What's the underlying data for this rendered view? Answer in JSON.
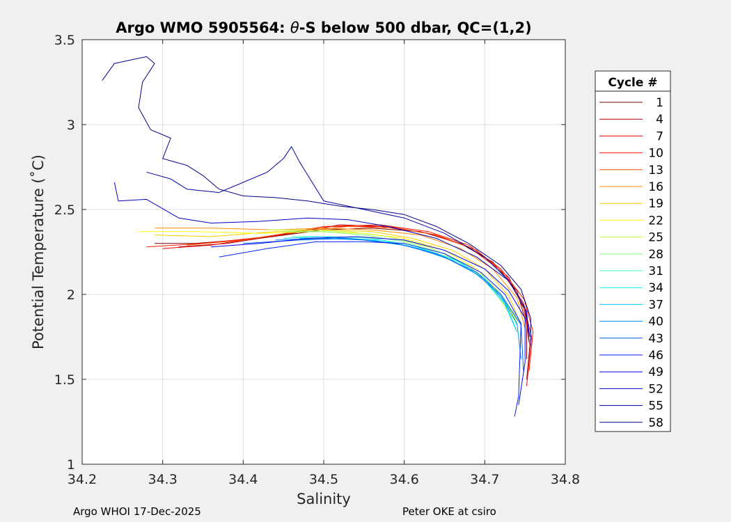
{
  "chart_data": {
    "type": "line",
    "title": {
      "prefix": "Argo WMO 5905564: ",
      "symbol": "θ",
      "suffix": "-S below 500 dbar,  QC=(1,2)"
    },
    "xlabel": "Salinity",
    "ylabel": "Potential Temperature (˚C)",
    "xlim": [
      34.2,
      34.8
    ],
    "ylim": [
      1,
      3.5
    ],
    "xticks": [
      34.2,
      34.3,
      34.4,
      34.5,
      34.6,
      34.7,
      34.8
    ],
    "xtick_labels": [
      "34.2",
      "34.3",
      "34.4",
      "34.5",
      "34.6",
      "34.7",
      "34.8"
    ],
    "yticks": [
      1,
      1.5,
      2,
      2.5,
      3,
      3.5
    ],
    "ytick_labels": [
      "1",
      "1.5",
      "2",
      "2.5",
      "3",
      "3.5"
    ],
    "grid": true,
    "colormap": "jet",
    "series_note": "one theta-S profile per cycle (cycles 1-58), colored by cycle number",
    "legend": {
      "title": "Cycle #",
      "placement": "outside-right",
      "entries": [
        {
          "label": "1",
          "color": "#7f0000"
        },
        {
          "label": "4",
          "color": "#ad0000"
        },
        {
          "label": "7",
          "color": "#dd0000"
        },
        {
          "label": "10",
          "color": "#ff1a00"
        },
        {
          "label": "13",
          "color": "#ff4a00"
        },
        {
          "label": "16",
          "color": "#ff8a00"
        },
        {
          "label": "19",
          "color": "#ffcc00"
        },
        {
          "label": "22",
          "color": "#fdff00"
        },
        {
          "label": "25",
          "color": "#c2ff3c"
        },
        {
          "label": "28",
          "color": "#7dff7d"
        },
        {
          "label": "31",
          "color": "#3cffc2"
        },
        {
          "label": "34",
          "color": "#00f2f2"
        },
        {
          "label": "37",
          "color": "#00c8ff"
        },
        {
          "label": "40",
          "color": "#0090ff"
        },
        {
          "label": "43",
          "color": "#0058ff"
        },
        {
          "label": "46",
          "color": "#0020ff"
        },
        {
          "label": "49",
          "color": "#0000f0"
        },
        {
          "label": "52",
          "color": "#0000c8"
        },
        {
          "label": "55",
          "color": "#0000a6"
        },
        {
          "label": "58",
          "color": "#00008b"
        }
      ]
    },
    "profiles": [
      {
        "cycle": 1,
        "color": "#7f0000",
        "pts": [
          [
            34.29,
            2.3
          ],
          [
            34.34,
            2.3
          ],
          [
            34.42,
            2.33
          ],
          [
            34.5,
            2.38
          ],
          [
            34.56,
            2.39
          ],
          [
            34.62,
            2.37
          ],
          [
            34.67,
            2.3
          ],
          [
            34.71,
            2.19
          ],
          [
            34.74,
            2.02
          ],
          [
            34.752,
            1.82
          ],
          [
            34.752,
            1.62
          ]
        ]
      },
      {
        "cycle": 4,
        "color": "#ad0000",
        "pts": [
          [
            34.32,
            2.28
          ],
          [
            34.38,
            2.3
          ],
          [
            34.46,
            2.36
          ],
          [
            34.52,
            2.41
          ],
          [
            34.58,
            2.4
          ],
          [
            34.64,
            2.35
          ],
          [
            34.69,
            2.26
          ],
          [
            34.73,
            2.1
          ],
          [
            34.75,
            1.9
          ],
          [
            34.756,
            1.7
          ],
          [
            34.752,
            1.5
          ]
        ]
      },
      {
        "cycle": 7,
        "color": "#dd0000",
        "pts": [
          [
            34.3,
            2.27
          ],
          [
            34.36,
            2.29
          ],
          [
            34.44,
            2.35
          ],
          [
            34.51,
            2.4
          ],
          [
            34.57,
            2.4
          ],
          [
            34.63,
            2.36
          ],
          [
            34.68,
            2.28
          ],
          [
            34.72,
            2.14
          ],
          [
            34.748,
            1.95
          ],
          [
            34.758,
            1.75
          ],
          [
            34.752,
            1.46
          ]
        ]
      },
      {
        "cycle": 10,
        "color": "#ff1a00",
        "pts": [
          [
            34.28,
            2.28
          ],
          [
            34.35,
            2.3
          ],
          [
            34.43,
            2.34
          ],
          [
            34.5,
            2.4
          ],
          [
            34.57,
            2.41
          ],
          [
            34.63,
            2.37
          ],
          [
            34.68,
            2.29
          ],
          [
            34.72,
            2.15
          ],
          [
            34.749,
            1.97
          ],
          [
            34.76,
            1.78
          ],
          [
            34.755,
            1.55
          ]
        ]
      },
      {
        "cycle": 13,
        "color": "#ff4a00",
        "pts": [
          [
            34.33,
            2.29
          ],
          [
            34.4,
            2.32
          ],
          [
            34.47,
            2.37
          ],
          [
            34.53,
            2.4
          ],
          [
            34.59,
            2.39
          ],
          [
            34.64,
            2.35
          ],
          [
            34.69,
            2.26
          ],
          [
            34.725,
            2.12
          ],
          [
            34.748,
            1.93
          ],
          [
            34.755,
            1.72
          ]
        ]
      },
      {
        "cycle": 16,
        "color": "#ff8a00",
        "pts": [
          [
            34.29,
            2.39
          ],
          [
            34.36,
            2.39
          ],
          [
            34.44,
            2.38
          ],
          [
            34.5,
            2.39
          ],
          [
            34.56,
            2.38
          ],
          [
            34.62,
            2.35
          ],
          [
            34.67,
            2.27
          ],
          [
            34.71,
            2.15
          ],
          [
            34.74,
            1.98
          ],
          [
            34.75,
            1.8
          ]
        ]
      },
      {
        "cycle": 19,
        "color": "#ffcc00",
        "pts": [
          [
            34.29,
            2.35
          ],
          [
            34.36,
            2.34
          ],
          [
            34.44,
            2.37
          ],
          [
            34.5,
            2.38
          ],
          [
            34.56,
            2.37
          ],
          [
            34.61,
            2.33
          ],
          [
            34.66,
            2.26
          ],
          [
            34.7,
            2.15
          ],
          [
            34.73,
            1.99
          ],
          [
            34.745,
            1.82
          ]
        ]
      },
      {
        "cycle": 22,
        "color": "#fdff00",
        "pts": [
          [
            34.27,
            2.37
          ],
          [
            34.34,
            2.37
          ],
          [
            34.42,
            2.36
          ],
          [
            34.49,
            2.37
          ],
          [
            34.55,
            2.36
          ],
          [
            34.6,
            2.33
          ],
          [
            34.65,
            2.26
          ],
          [
            34.69,
            2.15
          ],
          [
            34.72,
            2.0
          ],
          [
            34.74,
            1.84
          ]
        ]
      },
      {
        "cycle": 25,
        "color": "#c2ff3c",
        "pts": [
          [
            34.43,
            2.38
          ],
          [
            34.48,
            2.38
          ],
          [
            34.53,
            2.37
          ],
          [
            34.58,
            2.34
          ],
          [
            34.63,
            2.28
          ],
          [
            34.68,
            2.17
          ],
          [
            34.71,
            2.03
          ],
          [
            34.735,
            1.86
          ]
        ]
      },
      {
        "cycle": 28,
        "color": "#7dff7d",
        "pts": [
          [
            34.45,
            2.37
          ],
          [
            34.5,
            2.37
          ],
          [
            34.55,
            2.35
          ],
          [
            34.6,
            2.31
          ],
          [
            34.65,
            2.24
          ],
          [
            34.69,
            2.13
          ],
          [
            34.72,
            2.0
          ],
          [
            34.74,
            1.85
          ]
        ]
      },
      {
        "cycle": 31,
        "color": "#3cffc2",
        "pts": [
          [
            34.46,
            2.34
          ],
          [
            34.51,
            2.34
          ],
          [
            34.56,
            2.33
          ],
          [
            34.61,
            2.29
          ],
          [
            34.66,
            2.21
          ],
          [
            34.7,
            2.1
          ],
          [
            34.725,
            1.96
          ],
          [
            34.74,
            1.82
          ]
        ]
      },
      {
        "cycle": 34,
        "color": "#00f2f2",
        "pts": [
          [
            34.47,
            2.33
          ],
          [
            34.52,
            2.33
          ],
          [
            34.57,
            2.32
          ],
          [
            34.62,
            2.27
          ],
          [
            34.67,
            2.19
          ],
          [
            34.7,
            2.08
          ],
          [
            34.725,
            1.94
          ],
          [
            34.738,
            1.8
          ]
        ]
      },
      {
        "cycle": 37,
        "color": "#00c8ff",
        "pts": [
          [
            34.45,
            2.33
          ],
          [
            34.5,
            2.34
          ],
          [
            34.56,
            2.32
          ],
          [
            34.61,
            2.28
          ],
          [
            34.66,
            2.2
          ],
          [
            34.7,
            2.09
          ],
          [
            34.725,
            1.95
          ],
          [
            34.74,
            1.78
          ]
        ]
      },
      {
        "cycle": 40,
        "color": "#0090ff",
        "pts": [
          [
            34.44,
            2.32
          ],
          [
            34.5,
            2.33
          ],
          [
            34.55,
            2.32
          ],
          [
            34.6,
            2.29
          ],
          [
            34.65,
            2.22
          ],
          [
            34.69,
            2.12
          ],
          [
            34.72,
            1.99
          ],
          [
            34.74,
            1.83
          ],
          [
            34.745,
            1.62
          ]
        ]
      },
      {
        "cycle": 43,
        "color": "#0058ff",
        "pts": [
          [
            34.4,
            2.3
          ],
          [
            34.47,
            2.32
          ],
          [
            34.53,
            2.33
          ],
          [
            34.59,
            2.3
          ],
          [
            34.64,
            2.24
          ],
          [
            34.69,
            2.13
          ],
          [
            34.72,
            2.0
          ],
          [
            34.745,
            1.82
          ],
          [
            34.748,
            1.55
          ]
        ]
      },
      {
        "cycle": 46,
        "color": "#0020ff",
        "pts": [
          [
            34.37,
            2.22
          ],
          [
            34.43,
            2.27
          ],
          [
            34.49,
            2.31
          ],
          [
            34.55,
            2.31
          ],
          [
            34.6,
            2.3
          ],
          [
            34.65,
            2.24
          ],
          [
            34.695,
            2.13
          ],
          [
            34.725,
            2.0
          ],
          [
            34.745,
            1.83
          ],
          [
            34.742,
            1.4
          ],
          [
            34.737,
            1.28
          ]
        ]
      },
      {
        "cycle": 49,
        "color": "#0000f0",
        "pts": [
          [
            34.36,
            2.28
          ],
          [
            34.42,
            2.3
          ],
          [
            34.48,
            2.33
          ],
          [
            34.54,
            2.34
          ],
          [
            34.6,
            2.32
          ],
          [
            34.65,
            2.26
          ],
          [
            34.7,
            2.15
          ],
          [
            34.73,
            2.02
          ],
          [
            34.75,
            1.86
          ],
          [
            34.75,
            1.6
          ],
          [
            34.742,
            1.35
          ]
        ]
      },
      {
        "cycle": 52,
        "color": "#0000c8",
        "pts": [
          [
            34.24,
            2.66
          ],
          [
            34.245,
            2.55
          ],
          [
            34.28,
            2.56
          ],
          [
            34.32,
            2.45
          ],
          [
            34.36,
            2.42
          ],
          [
            34.42,
            2.43
          ],
          [
            34.48,
            2.45
          ],
          [
            34.53,
            2.44
          ],
          [
            34.58,
            2.4
          ],
          [
            34.64,
            2.33
          ],
          [
            34.69,
            2.22
          ],
          [
            34.73,
            2.08
          ],
          [
            34.752,
            1.9
          ],
          [
            34.755,
            1.72
          ]
        ]
      },
      {
        "cycle": 55,
        "color": "#0000a6",
        "pts": [
          [
            34.28,
            2.72
          ],
          [
            34.31,
            2.68
          ],
          [
            34.33,
            2.62
          ],
          [
            34.37,
            2.6
          ],
          [
            34.4,
            2.66
          ],
          [
            34.43,
            2.72
          ],
          [
            34.45,
            2.8
          ],
          [
            34.46,
            2.87
          ],
          [
            34.47,
            2.78
          ],
          [
            34.5,
            2.55
          ],
          [
            34.55,
            2.5
          ],
          [
            34.6,
            2.45
          ],
          [
            34.65,
            2.36
          ],
          [
            34.7,
            2.22
          ],
          [
            34.73,
            2.08
          ],
          [
            34.75,
            1.92
          ],
          [
            34.756,
            1.75
          ]
        ]
      },
      {
        "cycle": 58,
        "color": "#00008b",
        "pts": [
          [
            34.225,
            3.26
          ],
          [
            34.24,
            3.36
          ],
          [
            34.26,
            3.38
          ],
          [
            34.28,
            3.4
          ],
          [
            34.29,
            3.36
          ],
          [
            34.275,
            3.25
          ],
          [
            34.27,
            3.1
          ],
          [
            34.285,
            2.97
          ],
          [
            34.31,
            2.92
          ],
          [
            34.3,
            2.8
          ],
          [
            34.33,
            2.76
          ],
          [
            34.35,
            2.7
          ],
          [
            34.37,
            2.62
          ],
          [
            34.4,
            2.58
          ],
          [
            34.44,
            2.57
          ],
          [
            34.48,
            2.55
          ],
          [
            34.52,
            2.52
          ],
          [
            34.56,
            2.5
          ],
          [
            34.6,
            2.47
          ],
          [
            34.64,
            2.4
          ],
          [
            34.68,
            2.3
          ],
          [
            34.72,
            2.17
          ],
          [
            34.745,
            2.03
          ],
          [
            34.757,
            1.86
          ],
          [
            34.757,
            1.7
          ]
        ]
      }
    ]
  },
  "footer": {
    "left": "Argo WHOI 17-Dec-2025",
    "right": "Peter OKE at csiro"
  }
}
